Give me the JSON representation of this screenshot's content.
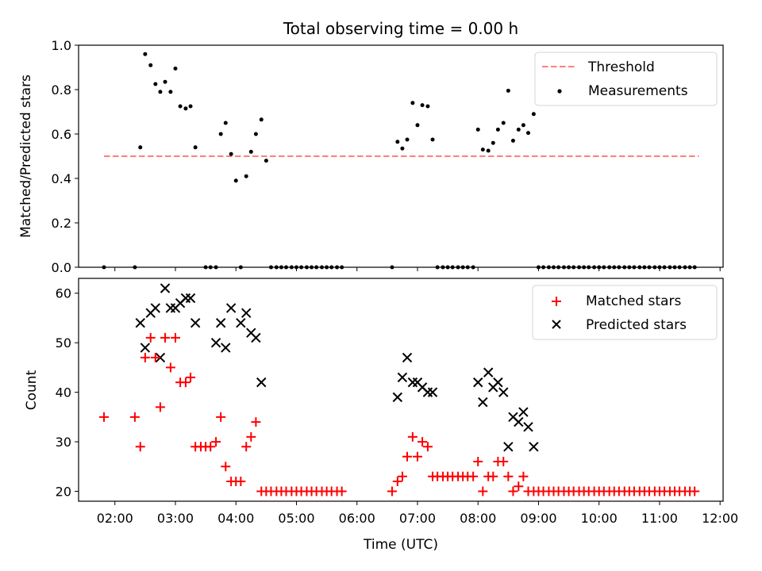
{
  "title": "Total observing time = 0.00 h",
  "chart_data": [
    {
      "type": "scatter",
      "ylabel": "Matched/Predicted stars",
      "xlim": [
        1.4,
        12.05
      ],
      "ylim": [
        0,
        1.0
      ],
      "yticks": [
        0.0,
        0.2,
        0.4,
        0.6,
        0.8,
        1.0
      ],
      "ytick_labels": [
        "0.0",
        "0.2",
        "0.4",
        "0.6",
        "0.8",
        "1.0"
      ],
      "legend": {
        "position": "top-right",
        "entries": [
          "Threshold",
          "Measurements"
        ]
      },
      "threshold": {
        "name": "Threshold",
        "y": 0.5,
        "x": [
          1.82,
          11.65
        ],
        "color": "#ff7f7f"
      },
      "series": [
        {
          "name": "Measurements",
          "color": "#000000",
          "x": [
            1.82,
            2.33,
            2.42,
            2.5,
            2.59,
            2.67,
            2.75,
            2.83,
            2.92,
            3.0,
            3.08,
            3.17,
            3.25,
            3.33,
            3.5,
            3.58,
            3.67,
            3.75,
            3.83,
            3.92,
            4.0,
            4.08,
            4.17,
            4.25,
            4.33,
            4.42,
            4.5,
            4.58,
            4.67,
            4.75,
            4.83,
            4.92,
            5.0,
            5.08,
            5.17,
            5.25,
            5.33,
            5.42,
            5.5,
            5.58,
            5.67,
            5.75,
            6.58,
            6.67,
            6.75,
            6.83,
            6.92,
            7.0,
            7.08,
            7.17,
            7.25,
            7.33,
            7.42,
            7.5,
            7.58,
            7.67,
            7.75,
            7.83,
            7.92,
            8.0,
            8.08,
            8.17,
            8.25,
            8.33,
            8.42,
            8.5,
            8.58,
            8.67,
            8.75,
            8.83,
            8.92,
            9.0,
            9.08,
            9.17,
            9.25,
            9.33,
            9.42,
            9.5,
            9.58,
            9.67,
            9.75,
            9.83,
            9.92,
            10.0,
            10.08,
            10.17,
            10.25,
            10.33,
            10.42,
            10.5,
            10.58,
            10.67,
            10.75,
            10.83,
            10.92,
            11.0,
            11.08,
            11.17,
            11.25,
            11.33,
            11.42,
            11.5,
            11.58
          ],
          "y": [
            0.0,
            0.0,
            0.54,
            0.96,
            0.91,
            0.825,
            0.79,
            0.835,
            0.79,
            0.895,
            0.725,
            0.715,
            0.725,
            0.54,
            0.0,
            0.0,
            0.0,
            0.6,
            0.65,
            0.51,
            0.39,
            0.0,
            0.41,
            0.52,
            0.6,
            0.665,
            0.48,
            0.0,
            0.0,
            0.0,
            0.0,
            0.0,
            0.0,
            0.0,
            0.0,
            0.0,
            0.0,
            0.0,
            0.0,
            0.0,
            0.0,
            0.0,
            0.0,
            0.565,
            0.535,
            0.575,
            0.74,
            0.64,
            0.73,
            0.725,
            0.575,
            0.0,
            0.0,
            0.0,
            0.0,
            0.0,
            0.0,
            0.0,
            0.0,
            0.62,
            0.53,
            0.525,
            0.56,
            0.62,
            0.65,
            0.795,
            0.57,
            0.62,
            0.64,
            0.605,
            0.69,
            0.0,
            0.0,
            0.0,
            0.0,
            0.0,
            0.0,
            0.0,
            0.0,
            0.0,
            0.0,
            0.0,
            0.0,
            0.0,
            0.0,
            0.0,
            0.0,
            0.0,
            0.0,
            0.0,
            0.0,
            0.0,
            0.0,
            0.0,
            0.0,
            0.0,
            0.0,
            0.0,
            0.0,
            0.0,
            0.0,
            0.0,
            0.0
          ]
        }
      ]
    },
    {
      "type": "scatter",
      "xlabel": "Time (UTC)",
      "ylabel": "Count",
      "xlim": [
        1.4,
        12.05
      ],
      "ylim": [
        18,
        63
      ],
      "xticks": [
        2,
        3,
        4,
        5,
        6,
        7,
        8,
        9,
        10,
        11,
        12
      ],
      "xtick_labels": [
        "02:00",
        "03:00",
        "04:00",
        "05:00",
        "06:00",
        "07:00",
        "08:00",
        "09:00",
        "10:00",
        "11:00",
        "12:00"
      ],
      "yticks": [
        20,
        30,
        40,
        50,
        60
      ],
      "ytick_labels": [
        "20",
        "30",
        "40",
        "50",
        "60"
      ],
      "legend": {
        "position": "top-right",
        "entries": [
          "Matched stars",
          "Predicted stars"
        ]
      },
      "series": [
        {
          "name": "Matched stars",
          "marker": "+",
          "color": "#ff0000",
          "x": [
            1.82,
            2.33,
            2.42,
            2.5,
            2.59,
            2.67,
            2.75,
            2.83,
            2.92,
            3.0,
            3.08,
            3.17,
            3.25,
            3.33,
            3.42,
            3.5,
            3.58,
            3.67,
            3.75,
            3.83,
            3.92,
            4.0,
            4.08,
            4.17,
            4.25,
            4.33,
            4.42,
            4.5,
            4.58,
            4.67,
            4.75,
            4.83,
            4.92,
            5.0,
            5.08,
            5.17,
            5.25,
            5.33,
            5.42,
            5.5,
            5.58,
            5.67,
            5.75,
            6.58,
            6.67,
            6.75,
            6.83,
            6.92,
            7.0,
            7.08,
            7.17,
            7.25,
            7.33,
            7.42,
            7.5,
            7.58,
            7.67,
            7.75,
            7.83,
            7.92,
            8.0,
            8.08,
            8.17,
            8.25,
            8.33,
            8.42,
            8.5,
            8.58,
            8.67,
            8.75,
            8.83,
            8.92,
            9.0,
            9.08,
            9.17,
            9.25,
            9.33,
            9.42,
            9.5,
            9.58,
            9.67,
            9.75,
            9.83,
            9.92,
            10.0,
            10.08,
            10.17,
            10.25,
            10.33,
            10.42,
            10.5,
            10.58,
            10.67,
            10.75,
            10.83,
            10.92,
            11.0,
            11.08,
            11.17,
            11.25,
            11.33,
            11.42,
            11.5,
            11.58
          ],
          "y": [
            35,
            35,
            29,
            47,
            51,
            47,
            37,
            51,
            45,
            51,
            42,
            42,
            43,
            29,
            29,
            29,
            29,
            30,
            35,
            25,
            22,
            22,
            22,
            29,
            31,
            34,
            20,
            20,
            20,
            20,
            20,
            20,
            20,
            20,
            20,
            20,
            20,
            20,
            20,
            20,
            20,
            20,
            20,
            20,
            22,
            23,
            27,
            31,
            27,
            30,
            29,
            23,
            23,
            23,
            23,
            23,
            23,
            23,
            23,
            23,
            26,
            20,
            23,
            23,
            26,
            26,
            23,
            20,
            21,
            23,
            20,
            20,
            20,
            20,
            20,
            20,
            20,
            20,
            20,
            20,
            20,
            20,
            20,
            20,
            20,
            20,
            20,
            20,
            20,
            20,
            20,
            20,
            20,
            20,
            20,
            20,
            20,
            20,
            20,
            20,
            20,
            20,
            20,
            20
          ]
        },
        {
          "name": "Predicted stars",
          "marker": "x",
          "color": "#000000",
          "x": [
            2.42,
            2.5,
            2.59,
            2.67,
            2.75,
            2.83,
            2.92,
            3.0,
            3.08,
            3.17,
            3.25,
            3.33,
            3.67,
            3.75,
            3.83,
            3.92,
            4.08,
            4.17,
            4.25,
            4.33,
            4.42,
            6.67,
            6.75,
            6.83,
            6.92,
            7.0,
            7.08,
            7.17,
            7.25,
            8.0,
            8.08,
            8.17,
            8.25,
            8.33,
            8.42,
            8.5,
            8.58,
            8.67,
            8.75,
            8.83,
            8.92
          ],
          "y": [
            54,
            49,
            56,
            57,
            47,
            61,
            57,
            57,
            58,
            59,
            59,
            54,
            50,
            54,
            49,
            57,
            54,
            56,
            52,
            51,
            42,
            39,
            43,
            47,
            42,
            42,
            41,
            40,
            40,
            42,
            38,
            44,
            41,
            42,
            40,
            29,
            35,
            34,
            36,
            33,
            29
          ]
        }
      ]
    }
  ]
}
